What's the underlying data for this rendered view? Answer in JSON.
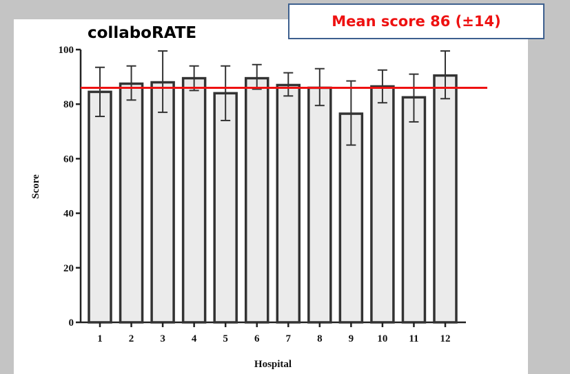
{
  "chart_data": {
    "type": "bar",
    "title": "collaboRATE",
    "annotation": "Mean score 86 (±14)",
    "xlabel": "Hospital",
    "ylabel": "Score",
    "categories": [
      "1",
      "2",
      "3",
      "4",
      "5",
      "6",
      "7",
      "8",
      "9",
      "10",
      "11",
      "12"
    ],
    "values": [
      84.5,
      87.5,
      88,
      89.5,
      84,
      89.5,
      87,
      86,
      76.5,
      86.5,
      82.5,
      90.5
    ],
    "error_low": [
      75.5,
      81.5,
      77,
      85,
      74,
      85.5,
      83,
      79.5,
      65,
      80.5,
      73.5,
      82
    ],
    "error_high": [
      93.5,
      94,
      99.5,
      94,
      94,
      94.5,
      91.5,
      93,
      88.5,
      92.5,
      91,
      99.5
    ],
    "mean_line": 86,
    "ylim": [
      0,
      100
    ],
    "yticks": [
      0,
      20,
      40,
      60,
      80,
      100
    ],
    "grid": false,
    "colors": {
      "bar_fill": "#ebebeb",
      "bar_stroke": "#333333",
      "mean_line": "#ee1111",
      "annotation_text": "#ee1111"
    }
  }
}
